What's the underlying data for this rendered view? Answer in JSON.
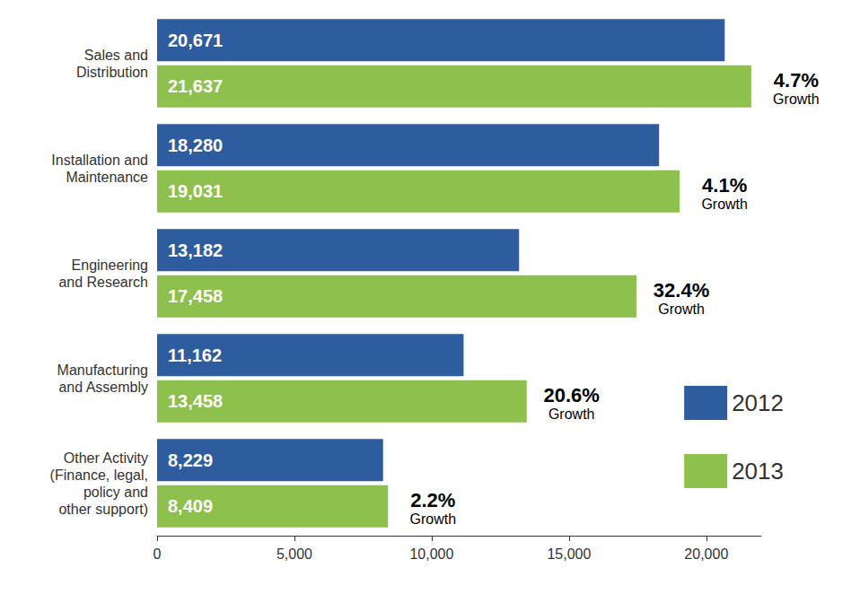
{
  "chart_data": {
    "type": "bar",
    "orientation": "horizontal",
    "categories": [
      "Sales and\nDistribution",
      "Installation and\nMaintenance",
      "Engineering\nand Research",
      "Manufacturing\nand Assembly",
      "Other Activity\n(Finance, legal,\npolicy and\nother support)"
    ],
    "series": [
      {
        "name": "2012",
        "color": "#2d5c9f",
        "values": [
          20671,
          18280,
          13182,
          11162,
          8229
        ],
        "value_labels": [
          "20,671",
          "18,280",
          "13,182",
          "11,162",
          "8,229"
        ]
      },
      {
        "name": "2013",
        "color": "#8dc04c",
        "values": [
          21637,
          19031,
          17458,
          13458,
          8409
        ],
        "value_labels": [
          "21,637",
          "19,031",
          "17,458",
          "13,458",
          "8,409"
        ]
      }
    ],
    "xlim": [
      0,
      22000
    ],
    "xticks": [
      0,
      {
        "value": 5000,
        "label": "5,000"
      },
      {
        "value": 10000,
        "label": "10,000"
      },
      {
        "value": 15000,
        "label": "15,000"
      },
      {
        "value": 20000,
        "label": "20,000"
      }
    ],
    "annotations": [
      {
        "series": "2013",
        "category": "Sales and\nDistribution",
        "text": "4.7%",
        "subtext": "Growth"
      },
      {
        "series": "2013",
        "category": "Installation and\nMaintenance",
        "text": "4.1%",
        "subtext": "Growth"
      },
      {
        "series": "2013",
        "category": "Engineering\nand Research",
        "text": "32.4%",
        "subtext": "Growth"
      },
      {
        "series": "2013",
        "category": "Manufacturing\nand Assembly",
        "text": "20.6%",
        "subtext": "Growth"
      },
      {
        "series": "2013",
        "category": "Other Activity\n(Finance, legal,\npolicy and\nother support)",
        "text": "2.2%",
        "subtext": "Growth"
      }
    ],
    "data_labels": true,
    "grid": false,
    "legend": "bottom-right"
  }
}
